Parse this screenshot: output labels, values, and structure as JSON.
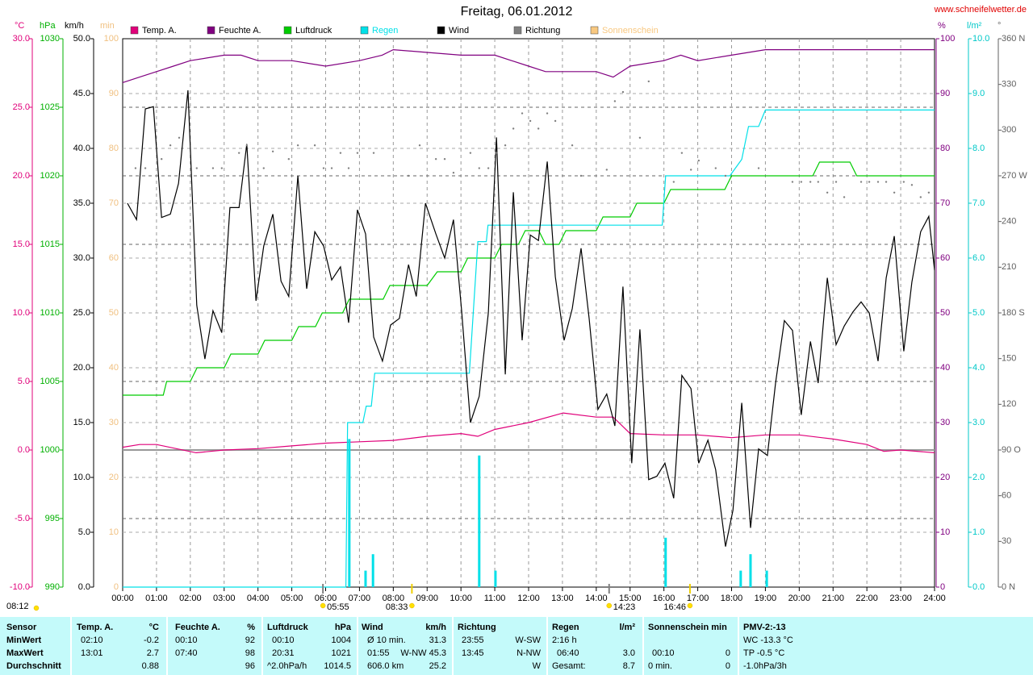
{
  "chart_data": {
    "type": "line",
    "title": "Freitag, 06.01.2012",
    "source": "www.schneifelwetter.de",
    "xlim": [
      0,
      24
    ],
    "xticks": [
      {
        "value": 0,
        "label": "00:00"
      },
      {
        "value": 1,
        "label": "01:00"
      },
      {
        "value": 2,
        "label": "02:00"
      },
      {
        "value": 3,
        "label": "03:00"
      },
      {
        "value": 4,
        "label": "04:00"
      },
      {
        "value": 5,
        "label": "05:00"
      },
      {
        "value": 6,
        "label": "06:00"
      },
      {
        "value": 7,
        "label": "07:00"
      },
      {
        "value": 8,
        "label": "08:00"
      },
      {
        "value": 9,
        "label": "09:00"
      },
      {
        "value": 10,
        "label": "10:00"
      },
      {
        "value": 11,
        "label": "11:00"
      },
      {
        "value": 12,
        "label": "12:00"
      },
      {
        "value": 13,
        "label": "13:00"
      },
      {
        "value": 14,
        "label": "14:00"
      },
      {
        "value": 15,
        "label": "15:00"
      },
      {
        "value": 16,
        "label": "16:00"
      },
      {
        "value": 17,
        "label": "17:00"
      },
      {
        "value": 18,
        "label": "18:00"
      },
      {
        "value": 19,
        "label": "19:00"
      },
      {
        "value": 20,
        "label": "20:00"
      },
      {
        "value": 21,
        "label": "21:00"
      },
      {
        "value": 22,
        "label": "22:00"
      },
      {
        "value": 23,
        "label": "23:00"
      },
      {
        "value": 24,
        "label": "24:00"
      }
    ],
    "grid": true,
    "axes": {
      "temp": {
        "label": "°C",
        "color": "#e0007a",
        "lim": [
          -10,
          30
        ],
        "grid": true,
        "ticks": [
          {
            "value": 30,
            "label": "30.0"
          },
          {
            "value": 25,
            "label": "25.0"
          },
          {
            "value": 20,
            "label": "20.0"
          },
          {
            "value": 15,
            "label": "15.0"
          },
          {
            "value": 10,
            "label": "10.0"
          },
          {
            "value": 5,
            "label": "5.0"
          },
          {
            "value": 0,
            "label": "0.0"
          },
          {
            "value": -5,
            "label": "-5.0"
          },
          {
            "value": -10,
            "label": "-10.0"
          }
        ]
      },
      "pressure": {
        "label": "hPa",
        "color": "#00b000",
        "lim": [
          990,
          1030
        ],
        "ticks": [
          1030,
          1025,
          1020,
          1015,
          1010,
          1005,
          1000,
          995,
          990
        ]
      },
      "wind": {
        "label": "km/h",
        "color": "#000000",
        "lim": [
          0,
          50
        ],
        "grid": true,
        "ticks": [
          {
            "value": 50,
            "label": "50.0"
          },
          {
            "value": 45,
            "label": "45.0"
          },
          {
            "value": 40,
            "label": "40.0"
          },
          {
            "value": 35,
            "label": "35.0"
          },
          {
            "value": 30,
            "label": "30.0"
          },
          {
            "value": 25,
            "label": "25.0"
          },
          {
            "value": 20,
            "label": "20.0"
          },
          {
            "value": 15,
            "label": "15.0"
          },
          {
            "value": 10,
            "label": "10.0"
          },
          {
            "value": 5,
            "label": "5.0"
          },
          {
            "value": 0,
            "label": "0.0"
          }
        ]
      },
      "sun": {
        "label": "min",
        "color": "#f0c080",
        "lim": [
          0,
          100
        ],
        "ticks": [
          100,
          90,
          80,
          70,
          60,
          50,
          40,
          30,
          20,
          10,
          0
        ]
      },
      "humidity": {
        "label": "%",
        "color": "#800080",
        "lim": [
          0,
          100
        ],
        "ticks": [
          100,
          90,
          80,
          70,
          60,
          50,
          40,
          30,
          20,
          10,
          0
        ]
      },
      "rain": {
        "label": "l/m²",
        "color": "#00c8c8",
        "lim": [
          0,
          10
        ],
        "ticks": [
          {
            "value": 10,
            "label": "10.0"
          },
          {
            "value": 9,
            "label": "9.0"
          },
          {
            "value": 8,
            "label": "8.0"
          },
          {
            "value": 7,
            "label": "7.0"
          },
          {
            "value": 6,
            "label": "6.0"
          },
          {
            "value": 5,
            "label": "5.0"
          },
          {
            "value": 4,
            "label": "4.0"
          },
          {
            "value": 3,
            "label": "3.0"
          },
          {
            "value": 2,
            "label": "2.0"
          },
          {
            "value": 1,
            "label": "1.0"
          },
          {
            "value": 0,
            "label": "0.0"
          }
        ]
      },
      "direction": {
        "label": "°",
        "color": "#606060",
        "lim": [
          0,
          360
        ],
        "ticks": [
          {
            "value": 360,
            "label": "360 N"
          },
          330,
          300,
          {
            "value": 270,
            "label": "270 W"
          },
          240,
          210,
          {
            "value": 180,
            "label": "180 S"
          },
          150,
          120,
          {
            "value": 90,
            "label": "90 O"
          },
          60,
          30,
          {
            "value": 0,
            "label": "0 N"
          }
        ]
      }
    },
    "series": [
      {
        "name": "Temp. A.",
        "color": "#e0007a",
        "axis": "temp",
        "x": [
          0,
          0.5,
          1,
          2.17,
          3,
          4,
          5,
          6,
          7,
          8,
          9,
          10,
          10.5,
          11,
          12,
          13.02,
          14,
          14.5,
          15,
          16,
          17,
          18,
          19,
          20,
          21,
          22,
          22.5,
          23,
          24
        ],
        "values": [
          0.2,
          0.4,
          0.4,
          -0.2,
          0.0,
          0.1,
          0.3,
          0.5,
          0.6,
          0.7,
          1.0,
          1.2,
          1.0,
          1.5,
          2.0,
          2.7,
          2.4,
          2.4,
          1.2,
          1.1,
          1.1,
          0.9,
          1.1,
          1.1,
          0.8,
          0.4,
          -0.1,
          0.0,
          -0.2
        ]
      },
      {
        "name": "Feuchte A.",
        "color": "#800080",
        "axis": "humidity",
        "x": [
          0,
          0.5,
          1,
          1.5,
          2,
          3,
          3.5,
          4,
          5,
          6,
          7,
          7.67,
          8,
          9,
          10,
          11,
          12,
          12.5,
          13,
          14,
          14.5,
          15,
          16,
          16.5,
          17,
          18,
          19,
          24
        ],
        "values": [
          92,
          93,
          94,
          95,
          96,
          97,
          97,
          96,
          96,
          95,
          96,
          97,
          98,
          97.5,
          97,
          97,
          95,
          94,
          94,
          94,
          93,
          95,
          96,
          97,
          96,
          97,
          98,
          98
        ]
      },
      {
        "name": "Luftdruck",
        "color": "#00cc00",
        "axis": "pressure",
        "x": [
          0,
          1.2,
          1.3,
          2,
          2.2,
          3,
          3.2,
          4,
          4.2,
          5,
          5.2,
          5.7,
          5.9,
          6.5,
          6.7,
          7.7,
          7.9,
          9,
          9.3,
          10,
          10.2,
          11,
          11.2,
          11.7,
          11.9,
          12.3,
          12.5,
          12.9,
          13.1,
          14,
          14.2,
          15,
          15.2,
          16,
          16.2,
          17.8,
          18,
          20.4,
          20.6,
          21.5,
          21.7,
          24
        ],
        "values": [
          1004,
          1004,
          1005,
          1005,
          1006,
          1006,
          1007,
          1007,
          1008,
          1008,
          1009,
          1009,
          1010,
          1010,
          1011,
          1011,
          1012,
          1012,
          1013,
          1013,
          1014,
          1014,
          1015,
          1015,
          1016,
          1016,
          1015,
          1015,
          1016,
          1016,
          1017,
          1017,
          1018,
          1018,
          1019,
          1019,
          1020,
          1020,
          1021,
          1021,
          1020,
          1020
        ]
      },
      {
        "name": "Regen",
        "color": "#00e0e8",
        "axis": "rain",
        "legend_text_colored": true,
        "x": [
          0,
          6.6,
          6.65,
          7.1,
          7.2,
          7.35,
          7.45,
          10.25,
          10.5,
          10.75,
          10.8,
          15.95,
          16.05,
          17.95,
          18.3,
          18.5,
          18.8,
          19,
          24
        ],
        "values": [
          0,
          0,
          3.0,
          3.0,
          3.3,
          3.3,
          3.9,
          3.9,
          6.3,
          6.3,
          6.6,
          6.6,
          7.5,
          7.5,
          7.8,
          8.4,
          8.4,
          8.7,
          8.7
        ],
        "bars": {
          "x": [
            6.7,
            7.18,
            7.4,
            10.54,
            11.02,
            16.05,
            18.27,
            18.56,
            19.04
          ],
          "values": [
            2.7,
            0.3,
            0.6,
            2.4,
            0.3,
            0.9,
            0.3,
            0.6,
            0.3
          ]
        }
      },
      {
        "name": "Wind",
        "color": "#000000",
        "axis": "wind",
        "x": [
          0.14,
          0.41,
          0.67,
          0.91,
          1.15,
          1.41,
          1.65,
          1.93,
          2.19,
          2.43,
          2.67,
          2.93,
          3.17,
          3.44,
          3.67,
          3.94,
          4.17,
          4.44,
          4.68,
          4.91,
          5.18,
          5.44,
          5.68,
          5.94,
          6.18,
          6.44,
          6.68,
          6.94,
          7.18,
          7.42,
          7.68,
          7.92,
          8.18,
          8.45,
          8.68,
          8.95,
          9.26,
          9.52,
          9.78,
          10.02,
          10.28,
          10.54,
          10.81,
          11.05,
          11.31,
          11.55,
          11.81,
          12.05,
          12.29,
          12.55,
          12.79,
          13.05,
          13.29,
          13.55,
          13.79,
          14.05,
          14.31,
          14.55,
          14.79,
          15.05,
          15.29,
          15.55,
          15.79,
          16.03,
          16.29,
          16.53,
          16.8,
          17.03,
          17.3,
          17.53,
          17.82,
          18.04,
          18.3,
          18.56,
          18.8,
          19.06,
          19.3,
          19.56,
          19.8,
          20.06,
          20.33,
          20.56,
          20.83,
          21.09,
          21.33,
          21.59,
          21.83,
          22.07,
          22.33,
          22.57,
          22.81,
          23.09,
          23.33,
          23.59,
          23.83,
          24
        ],
        "values": [
          35.0,
          33.5,
          43.6,
          43.8,
          33.7,
          34.0,
          36.8,
          45.3,
          25.7,
          20.8,
          25.2,
          23.2,
          34.6,
          34.6,
          40.4,
          26.1,
          31.1,
          34.0,
          27.9,
          26.5,
          37.5,
          27.2,
          32.4,
          31.1,
          28.0,
          29.2,
          24.1,
          34.4,
          32.2,
          22.8,
          20.6,
          23.9,
          24.5,
          29.4,
          26.5,
          35.0,
          32.2,
          30.0,
          33.5,
          25.2,
          15.0,
          17.4,
          25.0,
          41.0,
          19.4,
          36.0,
          22.5,
          32.1,
          31.6,
          38.8,
          28.3,
          22.5,
          25.4,
          30.9,
          24.5,
          16.2,
          17.6,
          14.7,
          27.4,
          11.3,
          23.5,
          9.8,
          10.1,
          11.3,
          8.1,
          19.3,
          18.1,
          11.3,
          13.4,
          10.7,
          3.7,
          7.0,
          16.8,
          5.4,
          12.6,
          12.0,
          18.6,
          24.3,
          23.4,
          15.7,
          22.4,
          18.6,
          28.2,
          22.1,
          23.8,
          25.1,
          26.0,
          25.0,
          20.6,
          28.2,
          32.0,
          21.5,
          27.8,
          32.4,
          33.8,
          28.9
        ]
      },
      {
        "name": "Richtung",
        "color": "#808080",
        "axis": "direction",
        "style": "dots",
        "x": [
          0.38,
          0.67,
          1.15,
          1.41,
          1.67,
          2.19,
          2.67,
          2.93,
          3.44,
          3.67,
          4.17,
          4.44,
          4.91,
          5.18,
          5.68,
          5.94,
          6.18,
          6.44,
          6.68,
          6.94,
          7.42,
          8.45,
          8.78,
          9.26,
          9.52,
          9.78,
          10.28,
          10.54,
          10.81,
          11.05,
          11.31,
          11.55,
          11.81,
          12.05,
          12.29,
          12.55,
          12.79,
          13.29,
          13.55,
          14.31,
          14.55,
          14.79,
          15.29,
          15.55,
          16.29,
          16.53,
          16.8,
          17.03,
          17.53,
          17.82,
          18.8,
          19.8,
          20.06,
          20.33,
          20.56,
          20.83,
          21.09,
          21.33,
          21.83,
          22.07,
          22.33,
          22.57,
          22.81,
          23.09,
          23.33,
          23.59,
          23.83
        ],
        "values": [
          275,
          275,
          281,
          290,
          295,
          275,
          275,
          275,
          285,
          290,
          275,
          286,
          281,
          290,
          290,
          275,
          275,
          285,
          275,
          285,
          285,
          270,
          290,
          281,
          281,
          272,
          285,
          275,
          275,
          285,
          290,
          301,
          311,
          306,
          301,
          311,
          306,
          290,
          270,
          274,
          319,
          325,
          295,
          332,
          266,
          285,
          274,
          280,
          275,
          270,
          275,
          266,
          266,
          266,
          266,
          259,
          266,
          256,
          266,
          266,
          266,
          266,
          259,
          266,
          264,
          256,
          259
        ]
      },
      {
        "name": "Sonnenschein",
        "color": "#f8c880",
        "axis": "sun",
        "legend_text_colored": true
      }
    ],
    "sun_events": [
      {
        "x": 5.92,
        "label": "05:55",
        "color": "#808080"
      },
      {
        "x": 8.55,
        "label": "08:33",
        "color": "#f0d000"
      },
      {
        "x": 14.38,
        "label": "14:23",
        "color": "#808080"
      },
      {
        "x": 16.77,
        "label": "16:46",
        "color": "#f0d000"
      }
    ],
    "footer_time": "08:12"
  },
  "table": {
    "header": [
      "Sensor",
      "Temp. A.",
      "°C",
      "Feuchte A.",
      "%",
      "Luftdruck",
      "hPa",
      "Wind",
      "km/h",
      "Richtung",
      "Regen",
      "l/m²",
      "Sonnenschein min",
      "PMV-2:-13"
    ],
    "rows": [
      {
        "label": "MinWert",
        "cells": [
          "02:10",
          "-0.2",
          "00:10",
          "92",
          "00:10",
          "1004",
          "Ø 10 min.",
          "31.3",
          "23:55",
          "W-SW",
          "2:16 h",
          "WC -13.3 °C"
        ]
      },
      {
        "label": "MaxWert",
        "cells": [
          "13:01",
          "2.7",
          "07:40",
          "98",
          "20:31",
          "1021",
          "01:55",
          "W-NW 45.3",
          "13:45",
          "N-NW",
          "06:40",
          "3.0",
          "00:10",
          "0",
          "TP -0.5 °C"
        ]
      },
      {
        "label": "Durchschnitt",
        "cells": [
          "0.88",
          "96",
          "^2.0hPa/h",
          "1014.5",
          "606.0 km",
          "25.2",
          "W",
          "Gesamt:",
          "8.7",
          "0 min.",
          "0",
          "-1.0hPa/3h"
        ]
      }
    ]
  }
}
